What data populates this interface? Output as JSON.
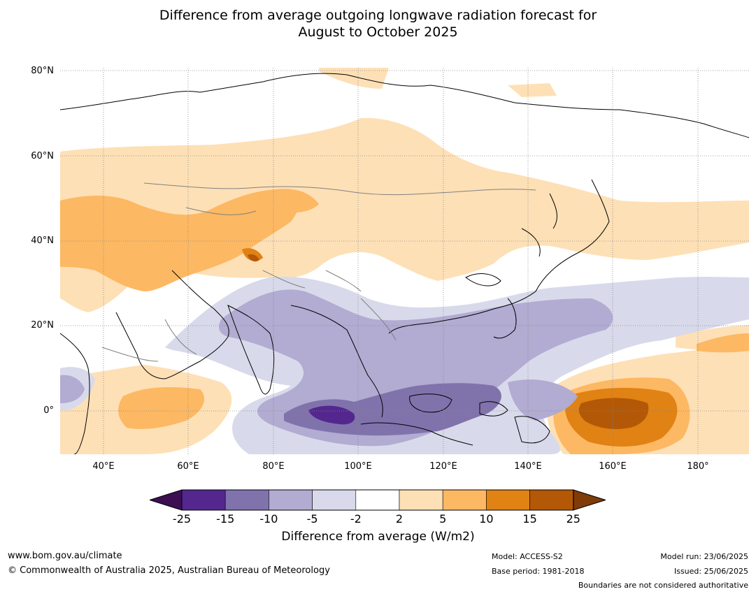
{
  "title": {
    "line1": "Difference from average outgoing longwave radiation forecast for",
    "line2": "August to October 2025"
  },
  "map": {
    "lat_labels": [
      "80°N",
      "60°N",
      "40°N",
      "20°N",
      "0°"
    ],
    "lon_labels": [
      "40°E",
      "60°E",
      "80°E",
      "100°E",
      "120°E",
      "140°E",
      "160°E",
      "180°"
    ],
    "grid": true
  },
  "legend": {
    "label": "Difference from average (W/m2)",
    "ticks": [
      "-25",
      "-15",
      "-10",
      "-5",
      "-2",
      "2",
      "5",
      "10",
      "15",
      "25"
    ],
    "colors": [
      "#3b0f52",
      "#54278f",
      "#8073ac",
      "#b2abd2",
      "#d8daeb",
      "#ffffff",
      "#fee0b6",
      "#fdb863",
      "#e08214",
      "#b35806",
      "#7f3b08"
    ]
  },
  "footer": {
    "website": "www.bom.gov.au/climate",
    "copyright": "© Commonwealth of Australia 2025, Australian Bureau of Meteorology",
    "model": "Model: ACCESS-S2",
    "base_period": "Base period: 1981-2018",
    "model_run": "Model run: 23/06/2025",
    "issued": "Issued: 25/06/2025",
    "disclaimer": "Boundaries are not considered authoritative"
  }
}
